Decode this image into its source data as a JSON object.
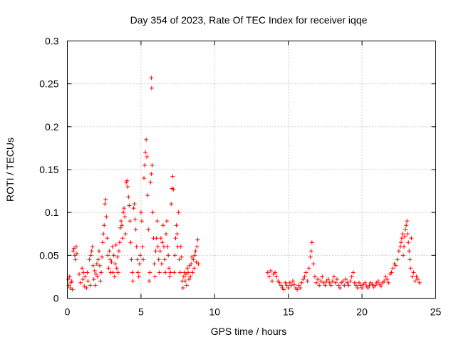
{
  "chart_data": {
    "type": "scatter",
    "title": "Day 354 of 2023, Rate Of TEC Index for receiver iqqe",
    "xlabel": "GPS time / hours",
    "ylabel": "ROTI / TECUs",
    "xlim": [
      0,
      25
    ],
    "ylim": [
      0,
      0.3
    ],
    "xticks": [
      0,
      5,
      10,
      15,
      20,
      25
    ],
    "yticks": [
      0,
      0.05,
      0.1,
      0.15,
      0.2,
      0.25,
      0.3
    ],
    "ytick_labels": [
      "0",
      "0.05",
      "0.1",
      "0.15",
      "0.2",
      "0.25",
      "0.3"
    ],
    "grid": true,
    "marker": "+",
    "series": [
      {
        "color": "#ff0000",
        "points": [
          [
            0.05,
            0.022
          ],
          [
            0.1,
            0.015
          ],
          [
            0.15,
            0.025
          ],
          [
            0.2,
            0.012
          ],
          [
            0.25,
            0.018
          ],
          [
            0.3,
            0.02
          ],
          [
            0.35,
            0.01
          ],
          [
            0.4,
            0.055
          ],
          [
            0.45,
            0.058
          ],
          [
            0.5,
            0.05
          ],
          [
            0.55,
            0.045
          ],
          [
            0.6,
            0.06
          ],
          [
            0.65,
            0.052
          ],
          [
            0.8,
            0.028
          ],
          [
            0.9,
            0.018
          ],
          [
            1.0,
            0.035
          ],
          [
            1.05,
            0.022
          ],
          [
            1.1,
            0.03
          ],
          [
            1.15,
            0.014
          ],
          [
            1.2,
            0.025
          ],
          [
            1.3,
            0.012
          ],
          [
            1.35,
            0.03
          ],
          [
            1.4,
            0.02
          ],
          [
            1.5,
            0.045
          ],
          [
            1.55,
            0.015
          ],
          [
            1.6,
            0.05
          ],
          [
            1.65,
            0.055
          ],
          [
            1.7,
            0.06
          ],
          [
            1.75,
            0.038
          ],
          [
            1.8,
            0.022
          ],
          [
            1.85,
            0.032
          ],
          [
            1.9,
            0.015
          ],
          [
            1.95,
            0.028
          ],
          [
            2.0,
            0.04
          ],
          [
            2.05,
            0.025
          ],
          [
            2.1,
            0.045
          ],
          [
            2.15,
            0.055
          ],
          [
            2.2,
            0.038
          ],
          [
            2.25,
            0.02
          ],
          [
            2.3,
            0.03
          ],
          [
            2.35,
            0.048
          ],
          [
            2.4,
            0.065
          ],
          [
            2.45,
            0.075
          ],
          [
            2.5,
            0.085
          ],
          [
            2.55,
            0.11
          ],
          [
            2.6,
            0.115
          ],
          [
            2.65,
            0.095
          ],
          [
            2.7,
            0.07
          ],
          [
            2.75,
            0.05
          ],
          [
            2.8,
            0.035
          ],
          [
            2.85,
            0.055
          ],
          [
            2.9,
            0.045
          ],
          [
            2.95,
            0.03
          ],
          [
            3.0,
            0.042
          ],
          [
            3.05,
            0.06
          ],
          [
            3.1,
            0.03
          ],
          [
            3.15,
            0.05
          ],
          [
            3.2,
            0.025
          ],
          [
            3.25,
            0.04
          ],
          [
            3.3,
            0.062
          ],
          [
            3.35,
            0.035
          ],
          [
            3.4,
            0.048
          ],
          [
            3.45,
            0.03
          ],
          [
            3.5,
            0.055
          ],
          [
            3.55,
            0.065
          ],
          [
            3.6,
            0.082
          ],
          [
            3.65,
            0.09
          ],
          [
            3.7,
            0.085
          ],
          [
            3.75,
            0.07
          ],
          [
            3.8,
            0.1
          ],
          [
            3.85,
            0.105
          ],
          [
            3.9,
            0.095
          ],
          [
            3.95,
            0.075
          ],
          [
            4.0,
            0.135
          ],
          [
            4.05,
            0.137
          ],
          [
            4.1,
            0.13
          ],
          [
            4.15,
            0.118
          ],
          [
            4.2,
            0.108
          ],
          [
            4.25,
            0.09
          ],
          [
            4.3,
            0.065
          ],
          [
            4.35,
            0.045
          ],
          [
            4.4,
            0.03
          ],
          [
            4.45,
            0.02
          ],
          [
            4.5,
            0.105
          ],
          [
            4.55,
            0.11
          ],
          [
            4.6,
            0.092
          ],
          [
            4.65,
            0.08
          ],
          [
            4.7,
            0.06
          ],
          [
            4.75,
            0.045
          ],
          [
            4.8,
            0.03
          ],
          [
            4.85,
            0.025
          ],
          [
            4.9,
            0.04
          ],
          [
            4.95,
            0.05
          ],
          [
            5.0,
            0.1
          ],
          [
            5.05,
            0.09
          ],
          [
            5.1,
            0.06
          ],
          [
            5.15,
            0.045
          ],
          [
            5.2,
            0.14
          ],
          [
            5.25,
            0.155
          ],
          [
            5.3,
            0.17
          ],
          [
            5.35,
            0.185
          ],
          [
            5.4,
            0.165
          ],
          [
            5.45,
            0.12
          ],
          [
            5.5,
            0.08
          ],
          [
            5.55,
            0.02
          ],
          [
            5.6,
            0.03
          ],
          [
            5.65,
            0.135
          ],
          [
            5.7,
            0.145
          ],
          [
            5.75,
            0.155
          ],
          [
            5.7,
            0.257
          ],
          [
            5.72,
            0.245
          ],
          [
            5.8,
            0.1
          ],
          [
            5.85,
            0.07
          ],
          [
            5.9,
            0.04
          ],
          [
            5.95,
            0.025
          ],
          [
            6.0,
            0.055
          ],
          [
            6.05,
            0.07
          ],
          [
            6.1,
            0.09
          ],
          [
            6.15,
            0.06
          ],
          [
            6.2,
            0.045
          ],
          [
            6.25,
            0.03
          ],
          [
            6.3,
            0.055
          ],
          [
            6.35,
            0.07
          ],
          [
            6.4,
            0.04
          ],
          [
            6.45,
            0.065
          ],
          [
            6.5,
            0.085
          ],
          [
            6.55,
            0.06
          ],
          [
            6.6,
            0.045
          ],
          [
            6.65,
            0.03
          ],
          [
            6.7,
            0.075
          ],
          [
            6.75,
            0.09
          ],
          [
            6.8,
            0.06
          ],
          [
            6.85,
            0.05
          ],
          [
            6.9,
            0.035
          ],
          [
            6.95,
            0.025
          ],
          [
            7.0,
            0.03
          ],
          [
            7.05,
            0.11
          ],
          [
            7.1,
            0.128
          ],
          [
            7.15,
            0.142
          ],
          [
            7.2,
            0.127
          ],
          [
            7.25,
            0.03
          ],
          [
            7.3,
            0.05
          ],
          [
            7.35,
            0.07
          ],
          [
            7.4,
            0.085
          ],
          [
            7.45,
            0.075
          ],
          [
            7.5,
            0.06
          ],
          [
            7.55,
            0.1
          ],
          [
            7.6,
            0.045
          ],
          [
            7.65,
            0.03
          ],
          [
            7.7,
            0.06
          ],
          [
            7.75,
            0.048
          ],
          [
            7.8,
            0.02
          ],
          [
            7.85,
            0.012
          ],
          [
            7.9,
            0.025
          ],
          [
            7.95,
            0.03
          ],
          [
            8.0,
            0.02
          ],
          [
            8.05,
            0.028
          ],
          [
            8.1,
            0.015
          ],
          [
            8.15,
            0.035
          ],
          [
            8.2,
            0.03
          ],
          [
            8.25,
            0.022
          ],
          [
            8.3,
            0.038
          ],
          [
            8.35,
            0.025
          ],
          [
            8.4,
            0.04
          ],
          [
            8.45,
            0.048
          ],
          [
            8.5,
            0.03
          ],
          [
            8.55,
            0.045
          ],
          [
            8.6,
            0.035
          ],
          [
            8.65,
            0.05
          ],
          [
            8.7,
            0.055
          ],
          [
            8.75,
            0.042
          ],
          [
            8.8,
            0.06
          ],
          [
            8.85,
            0.068
          ],
          [
            8.9,
            0.04
          ],
          [
            13.6,
            0.03
          ],
          [
            13.7,
            0.025
          ],
          [
            13.8,
            0.032
          ],
          [
            13.9,
            0.02
          ],
          [
            14.0,
            0.028
          ],
          [
            14.1,
            0.03
          ],
          [
            14.2,
            0.025
          ],
          [
            14.3,
            0.02
          ],
          [
            14.4,
            0.018
          ],
          [
            14.5,
            0.015
          ],
          [
            14.6,
            0.012
          ],
          [
            14.7,
            0.01
          ],
          [
            14.8,
            0.018
          ],
          [
            14.9,
            0.015
          ],
          [
            15.0,
            0.012
          ],
          [
            15.1,
            0.018
          ],
          [
            15.2,
            0.015
          ],
          [
            15.3,
            0.02
          ],
          [
            15.4,
            0.016
          ],
          [
            15.5,
            0.012
          ],
          [
            15.6,
            0.01
          ],
          [
            15.7,
            0.015
          ],
          [
            15.8,
            0.012
          ],
          [
            15.9,
            0.018
          ],
          [
            16.0,
            0.022
          ],
          [
            16.1,
            0.025
          ],
          [
            16.2,
            0.03
          ],
          [
            16.3,
            0.02
          ],
          [
            16.4,
            0.035
          ],
          [
            16.5,
            0.048
          ],
          [
            16.55,
            0.055
          ],
          [
            16.6,
            0.065
          ],
          [
            16.7,
            0.04
          ],
          [
            16.8,
            0.025
          ],
          [
            16.9,
            0.018
          ],
          [
            17.0,
            0.022
          ],
          [
            17.1,
            0.015
          ],
          [
            17.2,
            0.02
          ],
          [
            17.3,
            0.025
          ],
          [
            17.4,
            0.018
          ],
          [
            17.5,
            0.015
          ],
          [
            17.6,
            0.02
          ],
          [
            17.7,
            0.022
          ],
          [
            17.8,
            0.018
          ],
          [
            17.9,
            0.015
          ],
          [
            18.0,
            0.02
          ],
          [
            18.1,
            0.025
          ],
          [
            18.2,
            0.018
          ],
          [
            18.3,
            0.022
          ],
          [
            18.4,
            0.015
          ],
          [
            18.5,
            0.012
          ],
          [
            18.6,
            0.018
          ],
          [
            18.7,
            0.02
          ],
          [
            18.8,
            0.015
          ],
          [
            18.9,
            0.022
          ],
          [
            19.0,
            0.018
          ],
          [
            19.1,
            0.015
          ],
          [
            19.2,
            0.02
          ],
          [
            19.3,
            0.025
          ],
          [
            19.4,
            0.03
          ],
          [
            19.5,
            0.018
          ],
          [
            19.6,
            0.015
          ],
          [
            19.7,
            0.012
          ],
          [
            19.8,
            0.018
          ],
          [
            19.9,
            0.015
          ],
          [
            20.0,
            0.012
          ],
          [
            20.1,
            0.016
          ],
          [
            20.2,
            0.018
          ],
          [
            20.3,
            0.014
          ],
          [
            20.4,
            0.012
          ],
          [
            20.5,
            0.015
          ],
          [
            20.6,
            0.018
          ],
          [
            20.7,
            0.016
          ],
          [
            20.8,
            0.013
          ],
          [
            20.9,
            0.015
          ],
          [
            21.0,
            0.018
          ],
          [
            21.1,
            0.02
          ],
          [
            21.2,
            0.016
          ],
          [
            21.3,
            0.014
          ],
          [
            21.4,
            0.018
          ],
          [
            21.5,
            0.02
          ],
          [
            21.6,
            0.025
          ],
          [
            21.7,
            0.022
          ],
          [
            21.8,
            0.018
          ],
          [
            21.9,
            0.028
          ],
          [
            22.0,
            0.03
          ],
          [
            22.1,
            0.035
          ],
          [
            22.2,
            0.04
          ],
          [
            22.3,
            0.038
          ],
          [
            22.4,
            0.045
          ],
          [
            22.5,
            0.055
          ],
          [
            22.6,
            0.06
          ],
          [
            22.65,
            0.065
          ],
          [
            22.7,
            0.07
          ],
          [
            22.75,
            0.075
          ],
          [
            22.8,
            0.05
          ],
          [
            22.85,
            0.06
          ],
          [
            22.9,
            0.072
          ],
          [
            22.95,
            0.08
          ],
          [
            23.0,
            0.085
          ],
          [
            23.05,
            0.09
          ],
          [
            23.1,
            0.075
          ],
          [
            23.15,
            0.065
          ],
          [
            23.2,
            0.055
          ],
          [
            23.25,
            0.045
          ],
          [
            23.3,
            0.035
          ],
          [
            23.35,
            0.07
          ],
          [
            23.4,
            0.025
          ],
          [
            23.5,
            0.03
          ],
          [
            23.6,
            0.02
          ],
          [
            23.7,
            0.025
          ],
          [
            23.8,
            0.022
          ],
          [
            23.9,
            0.018
          ]
        ]
      }
    ]
  }
}
